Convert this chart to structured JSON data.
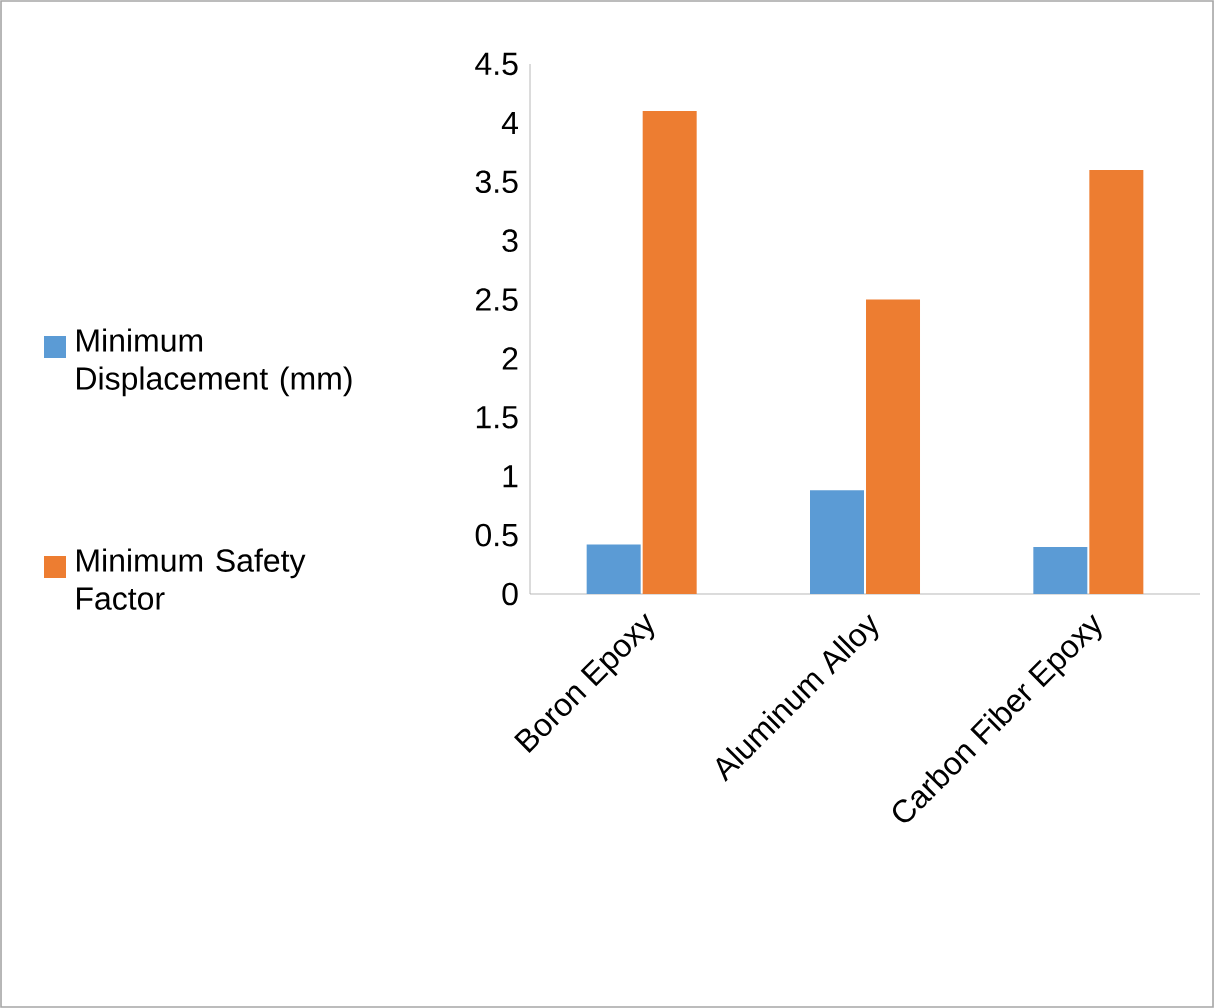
{
  "chart_data": {
    "type": "bar",
    "categories": [
      "Boron Epoxy",
      "Aluminum Alloy",
      "Carbon Fiber Epoxy"
    ],
    "series": [
      {
        "name": "Minimum Displacement (mm)",
        "color": "#5b9bd5",
        "values": [
          0.42,
          0.88,
          0.4
        ]
      },
      {
        "name": "Minimum Safety Factor",
        "color": "#ed7d31",
        "values": [
          4.1,
          2.5,
          3.6
        ]
      }
    ],
    "ylim": [
      0,
      4.5
    ],
    "yticks": [
      0,
      0.5,
      1,
      1.5,
      2,
      2.5,
      3,
      3.5,
      4,
      4.5
    ],
    "grid": false,
    "legend": "left"
  }
}
